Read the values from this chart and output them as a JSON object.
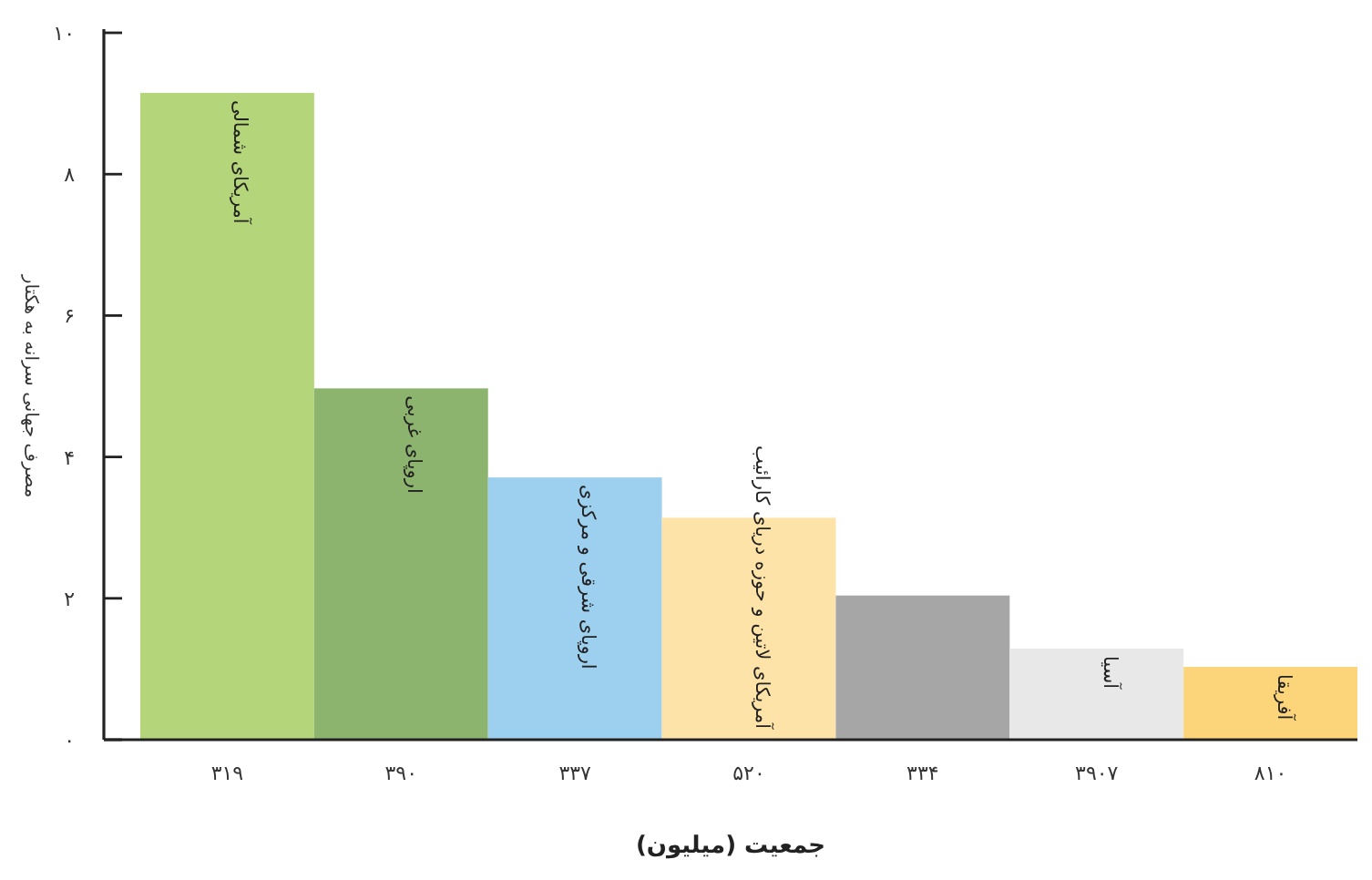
{
  "chart_data": {
    "type": "bar",
    "xlabel": "جمعیت (میلیون)",
    "ylabel": "مصرف جهانی سرانه به هکتار",
    "categories": [
      "۳۱۹",
      "۳۹۰",
      "۳۳۷",
      "۵۲۰",
      "۳۳۴",
      "۳۹۰۷",
      "۸۱۰"
    ],
    "values": [
      9.15,
      4.97,
      3.71,
      3.14,
      2.04,
      1.29,
      1.03
    ],
    "colors": [
      "#b5d57a",
      "#8db46e",
      "#9dcfee",
      "#fde3a7",
      "#a6a6a6",
      "#e8e8e8",
      "#fcd57a"
    ],
    "ylim": [
      0,
      10
    ],
    "yticks": [
      {
        "value": 0,
        "label": "۰"
      },
      {
        "value": 2,
        "label": "۲"
      },
      {
        "value": 4,
        "label": "۴"
      },
      {
        "value": 6,
        "label": "۶"
      },
      {
        "value": 8,
        "label": "۸"
      },
      {
        "value": 10,
        "label": "۱۰"
      }
    ],
    "annotations": [
      {
        "text": "آمریکای شمالی",
        "x": "۳۱۹",
        "y": 9.15
      },
      {
        "text": "اروپای غربی",
        "x": "۳۹۰",
        "y": 4.97
      },
      {
        "text": "اروپای شرقی و مرکزی",
        "x": "۳۳۷",
        "y": 3.71
      },
      {
        "text": "آمریکای لاتین و حوزه دریای کارائیب",
        "x": "۵۲۰",
        "y": 3.14
      },
      {
        "text": "آسیا",
        "x": "۳۹۰۷",
        "y": 1.29
      },
      {
        "text": "آفریقا",
        "x": "۸۱۰",
        "y": 1.03
      }
    ]
  }
}
